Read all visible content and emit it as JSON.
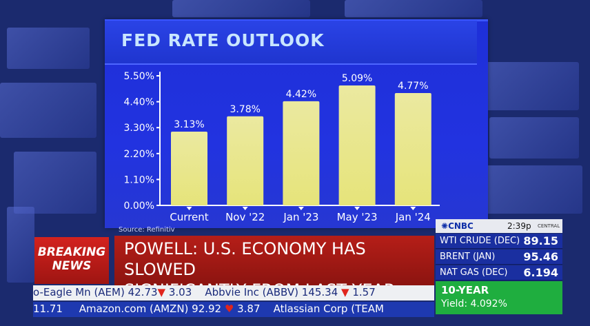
{
  "chart_data": {
    "type": "bar",
    "title": "FED RATE OUTLOOK",
    "categories": [
      "Current",
      "Nov '22",
      "Jan '23",
      "May '23",
      "Jan '24"
    ],
    "values": [
      3.13,
      3.78,
      4.42,
      5.09,
      4.77
    ],
    "data_labels": [
      "3.13%",
      "3.78%",
      "4.42%",
      "5.09%",
      "4.77%"
    ],
    "yticks": [
      "0.00%",
      "1.10%",
      "2.20%",
      "3.30%",
      "4.40%",
      "5.50%"
    ],
    "ylim": [
      0,
      5.5
    ],
    "grid": false,
    "bar_color": "#e6e47a",
    "source": "Source: Refinitiv"
  },
  "breaking": {
    "line1": "BREAKING",
    "line2": "NEWS"
  },
  "headline": {
    "line1": "POWELL: U.S. ECONOMY HAS SLOWED",
    "line2": "SIGNIFICANTLY FROM LAST YEAR"
  },
  "ticker_top": {
    "a": "o-Eagle Mn (AEM) 42.73",
    "a_change": "3.03",
    "b": "Abbvie Inc (ABBV) 145.34",
    "b_change": "1.57"
  },
  "ticker_bottom": {
    "a": "11.71",
    "b": "Amazon.com (AMZN) 92.92",
    "b_change": "3.87",
    "c": "Atlassian Corp (TEAM"
  },
  "cnbc": {
    "logo": "CNBC",
    "time": "2:39p",
    "zone": "CENTRAL",
    "commodities": [
      {
        "name": "WTI CRUDE (DEC)",
        "value": "89.15"
      },
      {
        "name": "BRENT (JAN)",
        "value": "95.46"
      },
      {
        "name": "NAT GAS (DEC)",
        "value": "6.194"
      }
    ],
    "ten_year_label": "10-YEAR",
    "ten_year_yield": "Yield: 4.092%"
  }
}
